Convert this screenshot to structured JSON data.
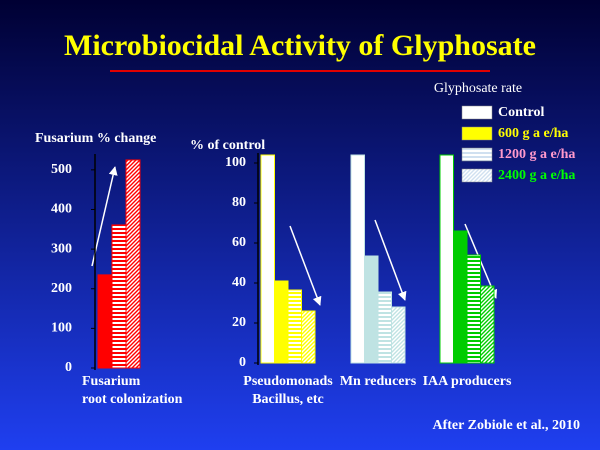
{
  "title": "Microbiocidal Activity of Glyphosate",
  "legend_title": "Glyphosate rate",
  "source": "After Zobiole et al., 2010",
  "chart_data": [
    {
      "type": "bar",
      "ylabel": "Fusarium % change",
      "categories": [
        [
          "Fusarium",
          "root colonization"
        ]
      ],
      "series": [
        {
          "color": "#ff0000",
          "pattern": "solid",
          "values": [
            235
          ]
        },
        {
          "color": "#ff0000",
          "pattern": "horizontal",
          "values": [
            361
          ]
        },
        {
          "color": "#ff0000",
          "pattern": "diagonal",
          "values": [
            525
          ]
        }
      ],
      "ylim": [
        0,
        540
      ],
      "yticks": [
        0,
        100,
        200,
        300,
        400,
        500
      ]
    },
    {
      "type": "bar",
      "ylabel": "% of control",
      "categories": [
        [
          "Pseudomonads",
          "Bacillus, etc"
        ],
        [
          "Mn reducers"
        ],
        [
          "IAA producers"
        ]
      ],
      "series": [
        {
          "name": "Control",
          "color": "#ffffff",
          "label_color": "#ffffff",
          "pattern": "solid",
          "colors": [
            "#ffffff",
            "#ffffff",
            "#ffffff"
          ],
          "values": [
            104,
            104,
            104
          ]
        },
        {
          "name": "600 g a e/ha",
          "color": "#ffff00",
          "label_color": "#ffff00",
          "pattern": "solid",
          "colors": [
            "#ffff00",
            "#bfe3e3",
            "#00cc00"
          ],
          "values": [
            41,
            53.5,
            66
          ]
        },
        {
          "name": "1200 g a e/ha",
          "color": "#d0e0f0",
          "label_color": "#ff99cc",
          "pattern": "horizontal",
          "colors": [
            "#ffff00",
            "#bfe3e3",
            "#00cc00"
          ],
          "values": [
            36.5,
            35.5,
            54
          ]
        },
        {
          "name": "2400 g a e/ha",
          "color": "#d0e0f0",
          "label_color": "#00ff00",
          "pattern": "diagonal",
          "colors": [
            "#ffff00",
            "#bfe3e3",
            "#00cc00"
          ],
          "values": [
            26,
            28,
            38.5
          ]
        }
      ],
      "ylim": [
        0,
        105
      ],
      "yticks": [
        0,
        20,
        40,
        60,
        80,
        100
      ],
      "legend": "upper right"
    }
  ]
}
